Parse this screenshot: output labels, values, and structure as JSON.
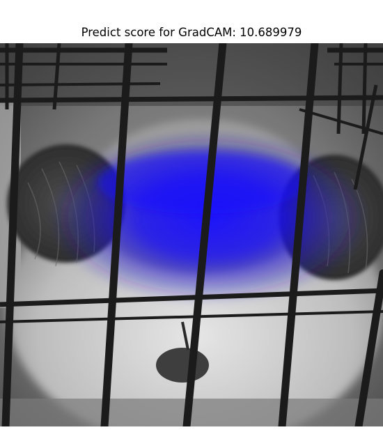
{
  "figure": {
    "title": "Predict score for GradCAM: 10.689979"
  },
  "image": {
    "description_icon": "gradcam-overlay",
    "base_tone": "grayscale",
    "overlay_color": "#1a10f0"
  }
}
